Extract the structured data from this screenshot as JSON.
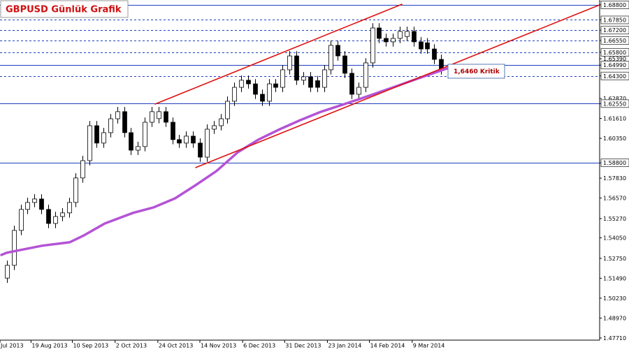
{
  "chart_data": {
    "type": "candlestick",
    "title": "GBPUSD Günlük Grafik",
    "annotation": "1,6460 Kritik",
    "up_color": "#ffffff",
    "down_color": "#000000",
    "xlim": [
      -1,
      86
    ],
    "ylim": [
      1.4744,
      1.6911
    ],
    "xticks": [
      {
        "value": -1,
        "label": "Jul 2013"
      },
      {
        "value": 3.5,
        "label": "19 Aug 2013"
      },
      {
        "value": 9.5,
        "label": "10 Sep 2013"
      },
      {
        "value": 15.7,
        "label": "2 Oct 2013"
      },
      {
        "value": 21.9,
        "label": "24 Oct 2013"
      },
      {
        "value": 28,
        "label": "14 Nov 2013"
      },
      {
        "value": 34.2,
        "label": "6 Dec 2013"
      },
      {
        "value": 40.3,
        "label": "31 Dec 2013"
      },
      {
        "value": 46.5,
        "label": "23 Jan 2014"
      },
      {
        "value": 52.6,
        "label": "14 Feb 2014"
      },
      {
        "value": 58.8,
        "label": "9 Mar 2014"
      }
    ],
    "yticks": [
      {
        "value": 1.688,
        "label": "1.68800"
      },
      {
        "value": 1.6785,
        "label": "1.67850"
      },
      {
        "value": 1.672,
        "label": "1.67200"
      },
      {
        "value": 1.6655,
        "label": "1.66550"
      },
      {
        "value": 1.658,
        "label": "1.65800"
      },
      {
        "value": 1.6539,
        "label": "1.65390"
      },
      {
        "value": 1.6499,
        "label": "1.64990"
      },
      {
        "value": 1.643,
        "label": "1.64300"
      },
      {
        "value": 1.6287,
        "label": "1.62870"
      },
      {
        "value": 1.6255,
        "label": "1.62550"
      },
      {
        "value": 1.6161,
        "label": "1.61610"
      },
      {
        "value": 1.6035,
        "label": "1.60350"
      },
      {
        "value": 1.588,
        "label": "1.58800"
      },
      {
        "value": 1.5783,
        "label": "1.57830"
      },
      {
        "value": 1.5657,
        "label": "1.56570"
      },
      {
        "value": 1.5527,
        "label": "1.55270"
      },
      {
        "value": 1.5405,
        "label": "1.54050"
      },
      {
        "value": 1.5275,
        "label": "1.52750"
      },
      {
        "value": 1.5149,
        "label": "1.51490"
      },
      {
        "value": 1.5023,
        "label": "1.50230"
      },
      {
        "value": 1.4897,
        "label": "1.48970"
      },
      {
        "value": 1.4771,
        "label": "1.47710"
      }
    ],
    "levels": [
      {
        "value": 1.688,
        "color": "#1e3fbf",
        "dashed": false
      },
      {
        "value": 1.6785,
        "color": "#1e3fbf",
        "dashed": true
      },
      {
        "value": 1.672,
        "color": "#1e3fbf",
        "dashed": true
      },
      {
        "value": 1.6655,
        "color": "#1e3fbf",
        "dashed": true
      },
      {
        "value": 1.658,
        "color": "#1e3fbf",
        "dashed": true
      },
      {
        "value": 1.6499,
        "color": "#1e3fbf",
        "dashed": false
      },
      {
        "value": 1.643,
        "color": "#1e3fbf",
        "dashed": true
      },
      {
        "value": 1.6255,
        "color": "#1e3fbf",
        "dashed": false
      },
      {
        "value": 1.588,
        "color": "#1e3fbf",
        "dashed": false
      }
    ],
    "open": [
      1.515,
      1.5231,
      1.5452,
      1.5585,
      1.5629,
      1.5651,
      1.5585,
      1.5496,
      1.554,
      1.5563,
      1.5629,
      1.5784,
      1.5894,
      1.6115,
      1.6005,
      1.6071,
      1.6159,
      1.6204,
      1.6071,
      1.596,
      1.5983,
      1.6137,
      1.616,
      1.6204,
      1.6137,
      1.6027,
      1.6005,
      1.6049,
      1.6005,
      1.5916,
      1.6093,
      1.6115,
      1.6159,
      1.627,
      1.6358,
      1.6403,
      1.638,
      1.6314,
      1.627,
      1.638,
      1.6358,
      1.6469,
      1.6557,
      1.6403,
      1.6425,
      1.64,
      1.6358,
      1.6469,
      1.6624,
      1.6557,
      1.6447,
      1.6314,
      1.6358,
      1.6513,
      1.6734,
      1.6668,
      1.6646,
      1.6668,
      1.668,
      1.6712,
      1.6646,
      1.664,
      1.6601,
      1.6535
    ],
    "high": [
      1.5261,
      1.5482,
      1.5615,
      1.5659,
      1.5681,
      1.5681,
      1.5615,
      1.557,
      1.5593,
      1.5659,
      1.5814,
      1.5924,
      1.6145,
      1.6145,
      1.6101,
      1.6189,
      1.6234,
      1.6234,
      1.6101,
      1.6013,
      1.6167,
      1.6234,
      1.6234,
      1.6234,
      1.6167,
      1.6057,
      1.6079,
      1.6079,
      1.6035,
      1.6123,
      1.6145,
      1.6189,
      1.63,
      1.6388,
      1.6433,
      1.6433,
      1.641,
      1.6344,
      1.641,
      1.641,
      1.6499,
      1.6587,
      1.6587,
      1.6455,
      1.6455,
      1.643,
      1.6499,
      1.6654,
      1.6654,
      1.6587,
      1.6477,
      1.6388,
      1.6543,
      1.6764,
      1.6764,
      1.6698,
      1.6698,
      1.6742,
      1.6742,
      1.6742,
      1.6676,
      1.667,
      1.6631,
      1.6565
    ],
    "low": [
      1.512,
      1.5201,
      1.5422,
      1.5555,
      1.5599,
      1.5555,
      1.5466,
      1.5466,
      1.551,
      1.5533,
      1.5599,
      1.5754,
      1.5864,
      1.5975,
      1.5975,
      1.6041,
      1.6129,
      1.6041,
      1.593,
      1.593,
      1.5953,
      1.6107,
      1.613,
      1.6107,
      1.5997,
      1.5975,
      1.5975,
      1.5975,
      1.5886,
      1.5886,
      1.6063,
      1.6085,
      1.6129,
      1.624,
      1.6328,
      1.635,
      1.6284,
      1.624,
      1.624,
      1.6328,
      1.6328,
      1.6439,
      1.6373,
      1.6373,
      1.6328,
      1.6328,
      1.6328,
      1.6439,
      1.6527,
      1.6417,
      1.6284,
      1.6284,
      1.6328,
      1.6483,
      1.6638,
      1.6616,
      1.6616,
      1.6638,
      1.665,
      1.6616,
      1.6571,
      1.6571,
      1.6505,
      1.6439
    ],
    "close": [
      1.5231,
      1.5452,
      1.5585,
      1.5629,
      1.5651,
      1.5585,
      1.5496,
      1.554,
      1.5563,
      1.5629,
      1.5784,
      1.5894,
      1.6115,
      1.6005,
      1.6071,
      1.6159,
      1.6204,
      1.6071,
      1.596,
      1.5983,
      1.6137,
      1.6204,
      1.6204,
      1.6137,
      1.6027,
      1.6005,
      1.6049,
      1.6005,
      1.5916,
      1.6093,
      1.6115,
      1.6159,
      1.627,
      1.6358,
      1.6403,
      1.638,
      1.6314,
      1.627,
      1.638,
      1.6358,
      1.6469,
      1.6557,
      1.6403,
      1.6425,
      1.6358,
      1.6358,
      1.6469,
      1.6624,
      1.6557,
      1.6447,
      1.6314,
      1.6358,
      1.6513,
      1.6734,
      1.6668,
      1.6646,
      1.6668,
      1.6712,
      1.6712,
      1.6646,
      1.6601,
      1.6601,
      1.6535,
      1.6469
    ],
    "ma": {
      "color": "#b453d6",
      "x": [
        -0.8,
        0,
        5.1,
        9.1,
        11.2,
        14.2,
        18.3,
        21.3,
        24.4,
        27.4,
        30.4,
        33.5,
        36.5,
        39.6,
        42.6,
        45.6,
        48.7,
        51.7,
        55.8,
        59.8,
        63.9
      ],
      "values": [
        1.5297,
        1.5311,
        1.5355,
        1.5377,
        1.5421,
        1.5496,
        1.5563,
        1.5598,
        1.5655,
        1.5739,
        1.5828,
        1.5947,
        1.6027,
        1.6093,
        1.6151,
        1.6204,
        1.6248,
        1.6292,
        1.6354,
        1.6416,
        1.6478
      ]
    },
    "trendlines": [
      {
        "color": "#e01010",
        "x": [
          21.5,
          57.3
        ],
        "values": [
          1.6252,
          1.6884
        ]
      },
      {
        "color": "#e01010",
        "x": [
          27.4,
          86
        ],
        "values": [
          1.585,
          1.688
        ]
      }
    ]
  }
}
